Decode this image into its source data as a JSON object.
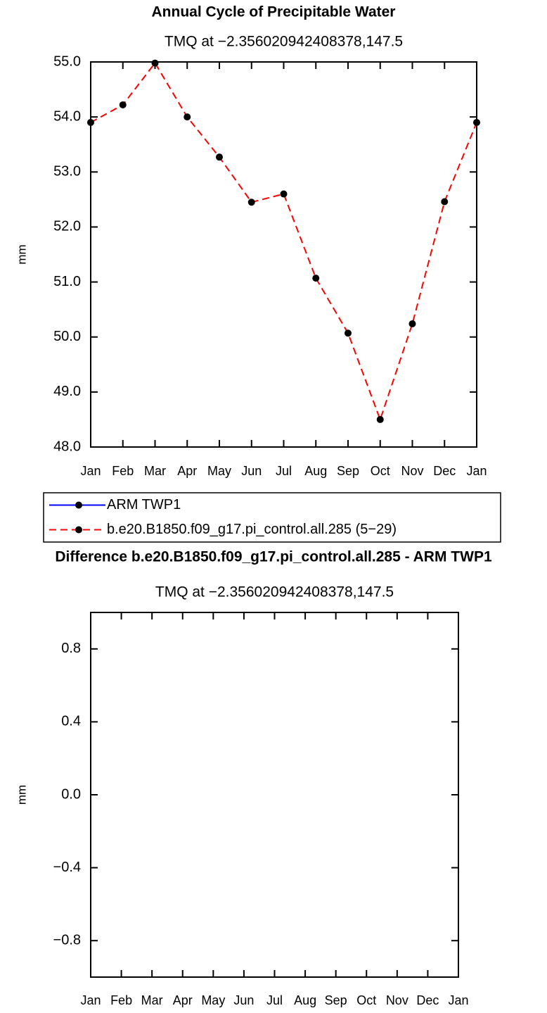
{
  "chart_data": [
    {
      "type": "line",
      "title": "Annual Cycle of Precipitable Water",
      "subtitle": "TMQ at −2.356020942408378,147.5",
      "y_label": "mm",
      "categories": [
        "Jan",
        "Feb",
        "Mar",
        "Apr",
        "May",
        "Jun",
        "Jul",
        "Aug",
        "Sep",
        "Oct",
        "Nov",
        "Dec",
        "Jan"
      ],
      "series": [
        {
          "name": "ARM TWP1",
          "color": "#0000ff",
          "style": "solid",
          "marker": "circle",
          "values": [
            null,
            null,
            null,
            null,
            null,
            null,
            null,
            null,
            null,
            null,
            null,
            null,
            null
          ]
        },
        {
          "name": "b.e20.B1850.f09_g17.pi_control.all.285 (5−29)",
          "color": "#ff0000",
          "style": "dashed",
          "marker": "circle",
          "values": [
            53.9,
            54.22,
            54.98,
            54.0,
            53.27,
            52.45,
            52.6,
            51.07,
            50.07,
            48.5,
            50.24,
            52.46,
            53.9
          ]
        }
      ],
      "ylim": [
        48,
        55
      ],
      "yticks": [
        {
          "value": 48,
          "label": "48.0"
        },
        {
          "value": 49,
          "label": "49.0"
        },
        {
          "value": 50,
          "label": "50.0"
        },
        {
          "value": 51,
          "label": "51.0"
        },
        {
          "value": 52,
          "label": "52.0"
        },
        {
          "value": 53,
          "label": "53.0"
        },
        {
          "value": 54,
          "label": "54.0"
        },
        {
          "value": 55,
          "label": "55.0"
        }
      ],
      "legend": "bottom"
    },
    {
      "type": "line",
      "title": "Difference b.e20.B1850.f09_g17.pi_control.all.285 - ARM TWP1",
      "subtitle": "TMQ at −2.356020942408378,147.5",
      "y_label": "mm",
      "categories": [
        "Jan",
        "Feb",
        "Mar",
        "Apr",
        "May",
        "Jun",
        "Jul",
        "Aug",
        "Sep",
        "Oct",
        "Nov",
        "Dec",
        "Jan"
      ],
      "series": [],
      "ylim": [
        -1,
        1
      ],
      "yticks": [
        {
          "value": -0.8,
          "label": "−0.8"
        },
        {
          "value": -0.4,
          "label": "−0.4"
        },
        {
          "value": 0,
          "label": "0.0"
        },
        0.4,
        0.8
      ]
    }
  ]
}
